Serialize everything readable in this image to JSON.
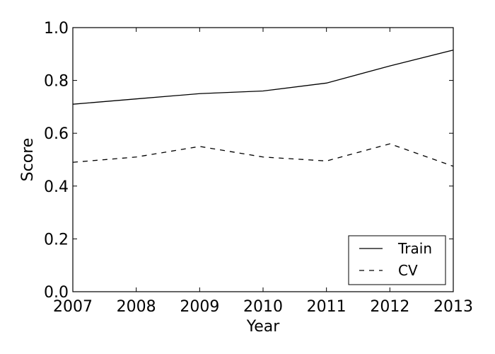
{
  "chart_data": {
    "type": "line",
    "title": "",
    "xlabel": "Year",
    "ylabel": "Score",
    "x": [
      2007,
      2008,
      2009,
      2010,
      2011,
      2012,
      2013
    ],
    "xlim": [
      2007,
      2013
    ],
    "ylim": [
      0.0,
      1.0
    ],
    "xticks": [
      "2007",
      "2008",
      "2009",
      "2010",
      "2011",
      "2012",
      "2013"
    ],
    "yticks": [
      "0.0",
      "0.2",
      "0.4",
      "0.6",
      "0.8",
      "1.0"
    ],
    "grid": false,
    "legend_position": "bottom-right",
    "series": [
      {
        "name": "Train",
        "style": "solid",
        "color": "#000000",
        "values": [
          0.71,
          0.73,
          0.75,
          0.76,
          0.79,
          0.855,
          0.915
        ]
      },
      {
        "name": "CV",
        "style": "dashed",
        "color": "#000000",
        "values": [
          0.49,
          0.51,
          0.55,
          0.51,
          0.495,
          0.56,
          0.475
        ]
      }
    ]
  }
}
